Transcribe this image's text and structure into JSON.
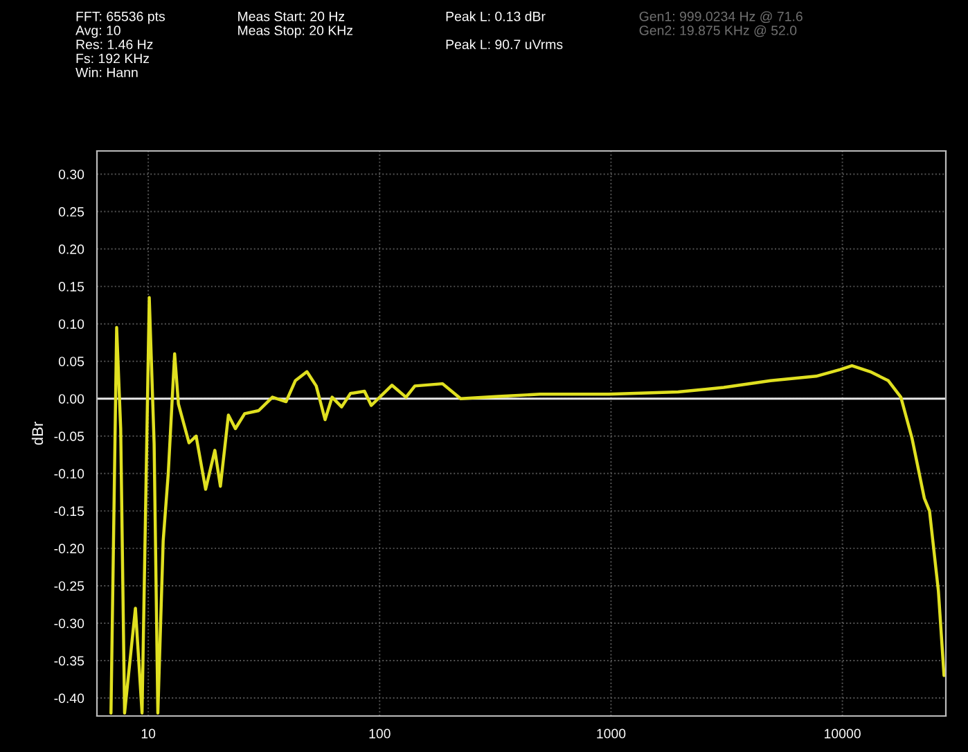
{
  "chart_data": {
    "type": "line",
    "ylabel": "dBr",
    "annotations": [
      "FFT: 65536 pts\nAvg: 10\nRes: 1.46 Hz\nFs: 192 KHz\nWin: Hann",
      "Meas Start: 20 Hz\nMeas Stop: 20 KHz",
      "Peak L: 0.13 dBr\n\nPeak L: 90.7 uVrms",
      "Gen1: 999.0234 Hz @ 71.6\nGen2: 19.875 KHz @ 52.0"
    ],
    "x": [
      6.9,
      7.3,
      7.6,
      7.9,
      8.8,
      9.4,
      10.1,
      10.6,
      11.0,
      11.6,
      12.2,
      13.0,
      13.5,
      15.0,
      16.1,
      17.7,
      19.4,
      20.5,
      22.2,
      23.8,
      26.1,
      30,
      34.4,
      39.4,
      43.2,
      48.5,
      53.2,
      58.1,
      62.3,
      68.5,
      74.8,
      86,
      92,
      113,
      130,
      142,
      187,
      224,
      326,
      493,
      978,
      1950,
      3070,
      4890,
      7700,
      9800,
      11000,
      13200,
      15800,
      17900,
      20000,
      22600,
      23800,
      26000,
      27500
    ],
    "series": [
      {
        "color": "#e0e020",
        "values": [
          -0.42,
          0.095,
          -0.04,
          -0.42,
          -0.28,
          -0.42,
          0.135,
          -0.06,
          -0.42,
          -0.19,
          -0.1,
          0.06,
          -0.007,
          -0.059,
          -0.05,
          -0.121,
          -0.069,
          -0.117,
          -0.022,
          -0.04,
          -0.02,
          -0.016,
          0.002,
          -0.004,
          0.024,
          0.036,
          0.017,
          -0.028,
          0.002,
          -0.011,
          0.007,
          0.01,
          -0.009,
          0.018,
          0.002,
          0.017,
          0.02,
          0.0,
          0.003,
          0.006,
          0.006,
          0.009,
          0.015,
          0.024,
          0.03,
          0.039,
          0.044,
          0.036,
          0.024,
          0.002,
          -0.053,
          -0.133,
          -0.15,
          -0.257,
          -0.37
        ]
      }
    ],
    "log": "x",
    "xlim": [
      6,
      28000
    ],
    "xticks": [
      10,
      100,
      1000,
      10000
    ],
    "ylim": [
      -0.424,
      0.331
    ],
    "yticks": [
      {
        "value": -0.4,
        "label": "-0.40"
      },
      {
        "value": -0.35,
        "label": "-0.35"
      },
      {
        "value": -0.3,
        "label": "-0.30"
      },
      {
        "value": -0.25,
        "label": "-0.25"
      },
      {
        "value": -0.2,
        "label": "-0.20"
      },
      {
        "value": -0.15,
        "label": "-0.15"
      },
      {
        "value": -0.1,
        "label": "-0.10"
      },
      {
        "value": -0.05,
        "label": "-0.05"
      },
      {
        "value": 0,
        "label": "0.00"
      },
      {
        "value": 0.05,
        "label": "0.05"
      },
      {
        "value": 0.1,
        "label": "0.10"
      },
      {
        "value": 0.15,
        "label": "0.15"
      },
      {
        "value": 0.2,
        "label": "0.20"
      },
      {
        "value": 0.25,
        "label": "0.25"
      },
      {
        "value": 0.3,
        "label": "0.30"
      }
    ],
    "ref_lines": [
      {
        "axis": "y",
        "value": 0,
        "color": "#e8e8e8"
      }
    ],
    "grid": true,
    "line_style": "solid"
  }
}
